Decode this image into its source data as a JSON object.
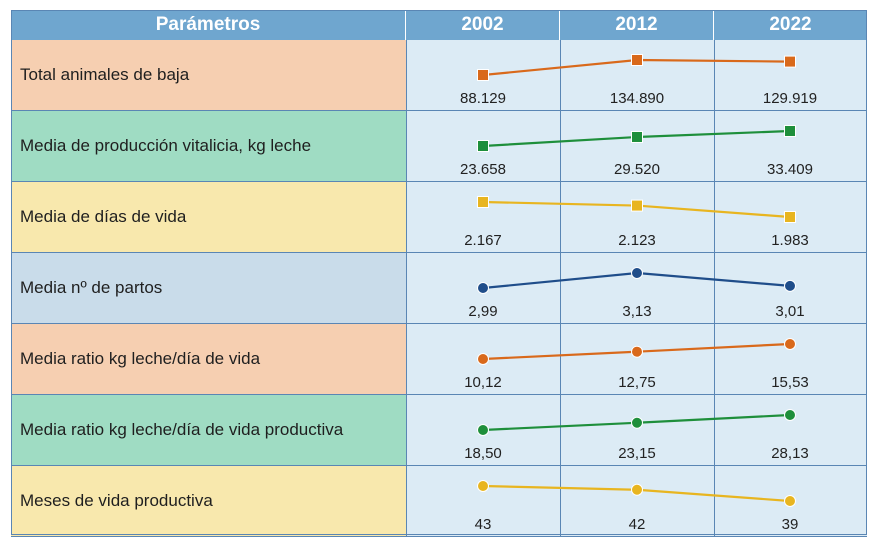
{
  "table": {
    "header": "Parámetros",
    "years": [
      "2002",
      "2012",
      "2022"
    ]
  },
  "chart_data": {
    "type": "table",
    "x": [
      "2002",
      "2012",
      "2022"
    ],
    "rows": [
      {
        "label": "Total animales de baja",
        "values": [
          88129,
          134890,
          129919
        ],
        "display": [
          "88.129",
          "134.890",
          "129.919"
        ],
        "color": "#d9691b",
        "marker": "square",
        "bg": "#f6cfb1"
      },
      {
        "label": "Media de producción vitalicia, kg leche",
        "values": [
          23658,
          29520,
          33409
        ],
        "display": [
          "23.658",
          "29.520",
          "33.409"
        ],
        "color": "#1e8f3b",
        "marker": "square",
        "bg": "#9fdcc3"
      },
      {
        "label": "Media de días de vida",
        "values": [
          2167,
          2123,
          1983
        ],
        "display": [
          "2.167",
          "2.123",
          "1.983"
        ],
        "color": "#e8b520",
        "marker": "square",
        "bg": "#f8e8ad"
      },
      {
        "label": "Media nº de partos",
        "values": [
          2.99,
          3.13,
          3.01
        ],
        "display": [
          "2,99",
          "3,13",
          "3,01"
        ],
        "color": "#1f4d8a",
        "marker": "circle",
        "bg": "#c9dcea"
      },
      {
        "label": "Media ratio kg leche/día de vida",
        "values": [
          10.12,
          12.75,
          15.53
        ],
        "display": [
          "10,12",
          "12,75",
          "15,53"
        ],
        "color": "#d9691b",
        "marker": "circle",
        "bg": "#f6cfb1"
      },
      {
        "label": "Media ratio kg leche/día de vida productiva",
        "values": [
          18.5,
          23.15,
          28.13
        ],
        "display": [
          "18,50",
          "23,15",
          "28,13"
        ],
        "color": "#1e8f3b",
        "marker": "circle",
        "bg": "#9fdcc3"
      },
      {
        "label": "Meses de vida productiva",
        "values": [
          43,
          42,
          39
        ],
        "display": [
          "43",
          "42",
          "39"
        ],
        "color": "#e8b520",
        "marker": "circle",
        "bg": "#f8e8ad"
      }
    ]
  }
}
